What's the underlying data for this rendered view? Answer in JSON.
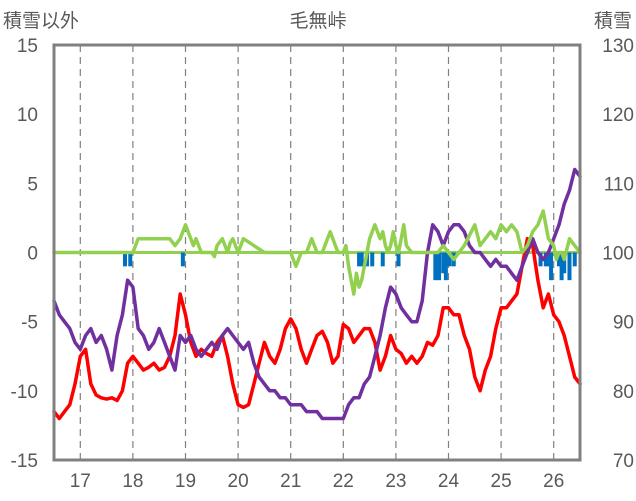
{
  "chart_data": {
    "type": "line",
    "title": "毛無峠",
    "ylabel_left": "積雪以外",
    "ylabel_right": "積雪",
    "xlim": [
      16.5,
      26.5
    ],
    "ylim_left": [
      -15,
      15
    ],
    "ylim_right": [
      70,
      130
    ],
    "x_ticks": [
      "17",
      "18",
      "19",
      "20",
      "21",
      "22",
      "23",
      "24",
      "25",
      "26"
    ],
    "x_tick_values": [
      17,
      18,
      19,
      20,
      21,
      22,
      23,
      24,
      25,
      26
    ],
    "y_ticks_left": [
      "15",
      "10",
      "5",
      "0",
      "-5",
      "-10",
      "-15"
    ],
    "y_tick_values_left": [
      15,
      10,
      5,
      0,
      -5,
      -10,
      -15
    ],
    "y_ticks_right": [
      "130",
      "120",
      "110",
      "100",
      "90",
      "80",
      "70"
    ],
    "y_tick_values_right": [
      130,
      120,
      110,
      100,
      90,
      80,
      70
    ],
    "grid": {
      "x": "dashed",
      "y": "none"
    },
    "colors": {
      "red": "#ff0000",
      "purple": "#7030a0",
      "green": "#92d050",
      "blue": "#0070c0",
      "axis": "#808080",
      "text": "#595959"
    },
    "series": [
      {
        "axis": "left",
        "kind": "line",
        "color": "#ff0000",
        "x": [
          16.5,
          16.6,
          16.7,
          16.8,
          16.9,
          17.0,
          17.1,
          17.2,
          17.3,
          17.4,
          17.5,
          17.6,
          17.7,
          17.8,
          17.9,
          18.0,
          18.1,
          18.2,
          18.3,
          18.4,
          18.5,
          18.6,
          18.7,
          18.8,
          18.9,
          19.0,
          19.1,
          19.2,
          19.3,
          19.4,
          19.5,
          19.6,
          19.7,
          19.8,
          19.9,
          20.0,
          20.1,
          20.2,
          20.3,
          20.4,
          20.5,
          20.6,
          20.7,
          20.8,
          20.9,
          21.0,
          21.1,
          21.2,
          21.3,
          21.4,
          21.5,
          21.6,
          21.7,
          21.8,
          21.9,
          22.0,
          22.1,
          22.2,
          22.3,
          22.4,
          22.5,
          22.6,
          22.7,
          22.8,
          22.9,
          23.0,
          23.1,
          23.2,
          23.3,
          23.4,
          23.5,
          23.6,
          23.7,
          23.8,
          23.9,
          24.0,
          24.1,
          24.2,
          24.3,
          24.4,
          24.5,
          24.6,
          24.7,
          24.8,
          24.9,
          25.0,
          25.1,
          25.2,
          25.3,
          25.4,
          25.5,
          25.6,
          25.7,
          25.8,
          25.9,
          26.0,
          26.1,
          26.2,
          26.3,
          26.4,
          26.5
        ],
        "y": [
          -11.5,
          -12.0,
          -11.5,
          -11.0,
          -9.5,
          -7.5,
          -7.0,
          -9.5,
          -10.3,
          -10.5,
          -10.6,
          -10.5,
          -10.7,
          -10.0,
          -8.0,
          -7.5,
          -8.0,
          -8.5,
          -8.3,
          -8.0,
          -8.5,
          -8.3,
          -7.5,
          -6.0,
          -3.0,
          -4.5,
          -6.5,
          -7.5,
          -7.0,
          -7.3,
          -7.5,
          -6.5,
          -6.0,
          -7.5,
          -9.5,
          -11.0,
          -11.2,
          -11.0,
          -9.5,
          -8.0,
          -6.5,
          -7.5,
          -8.0,
          -7.0,
          -5.5,
          -4.8,
          -5.5,
          -7.0,
          -8.0,
          -7.0,
          -6.0,
          -5.7,
          -6.5,
          -8.0,
          -7.5,
          -5.2,
          -5.5,
          -6.5,
          -6.0,
          -5.5,
          -5.5,
          -6.5,
          -8.5,
          -7.5,
          -6.0,
          -7.0,
          -7.3,
          -8.0,
          -7.5,
          -8.0,
          -7.5,
          -6.5,
          -6.7,
          -6.0,
          -4.0,
          -4.0,
          -4.5,
          -4.5,
          -6.0,
          -7.0,
          -9.0,
          -10.0,
          -8.5,
          -7.5,
          -5.5,
          -4.0,
          -4.0,
          -3.5,
          -3.0,
          -1.0,
          1.0,
          0.5,
          -2.0,
          -4.0,
          -3.0,
          -4.5,
          -5.0,
          -6.0,
          -7.5,
          -9.0,
          -9.5
        ]
      },
      {
        "axis": "right",
        "kind": "line",
        "color": "#7030a0",
        "x": [
          16.5,
          16.6,
          16.7,
          16.8,
          16.9,
          17.0,
          17.1,
          17.2,
          17.3,
          17.4,
          17.5,
          17.6,
          17.7,
          17.8,
          17.9,
          18.0,
          18.1,
          18.2,
          18.3,
          18.4,
          18.5,
          18.6,
          18.7,
          18.8,
          18.9,
          19.0,
          19.1,
          19.2,
          19.3,
          19.4,
          19.5,
          19.6,
          19.7,
          19.8,
          19.9,
          20.0,
          20.1,
          20.2,
          20.3,
          20.4,
          20.5,
          20.6,
          20.7,
          20.8,
          20.9,
          21.0,
          21.1,
          21.2,
          21.3,
          21.4,
          21.5,
          21.6,
          21.7,
          21.8,
          21.9,
          22.0,
          22.1,
          22.2,
          22.3,
          22.4,
          22.5,
          22.6,
          22.7,
          22.8,
          22.9,
          23.0,
          23.1,
          23.2,
          23.3,
          23.4,
          23.5,
          23.6,
          23.7,
          23.8,
          23.9,
          24.0,
          24.1,
          24.2,
          24.3,
          24.4,
          24.5,
          24.6,
          24.7,
          24.8,
          24.9,
          25.0,
          25.1,
          25.2,
          25.3,
          25.4,
          25.5,
          25.6,
          25.7,
          25.8,
          25.9,
          26.0,
          26.1,
          26.2,
          26.3,
          26.4,
          26.5
        ],
        "y": [
          93,
          91,
          90,
          89,
          87,
          86,
          88,
          89,
          87,
          88,
          86,
          83,
          88,
          91,
          96,
          95,
          89,
          88,
          86,
          87,
          89,
          87,
          85,
          83,
          88,
          87,
          88,
          86,
          85,
          86,
          87,
          86,
          88,
          89,
          88,
          87,
          86,
          87,
          84,
          82,
          81,
          80,
          80,
          79,
          79,
          78,
          78,
          78,
          77,
          77,
          77,
          76,
          76,
          76,
          76,
          76,
          78,
          79,
          79,
          81,
          82,
          85,
          88,
          92,
          95,
          94,
          92,
          91,
          90,
          90,
          93,
          100,
          104,
          103,
          101,
          103,
          104,
          104,
          103,
          101,
          100,
          100,
          99,
          98,
          99,
          98,
          98,
          97,
          96,
          98,
          100,
          102,
          100,
          99,
          100,
          102,
          104,
          107,
          109,
          112,
          111
        ]
      },
      {
        "axis": "left",
        "kind": "line",
        "color": "#92d050",
        "x": [
          16.5,
          17.0,
          17.5,
          18.0,
          18.05,
          18.1,
          18.2,
          18.3,
          18.5,
          18.6,
          18.7,
          18.8,
          18.9,
          19.0,
          19.05,
          19.1,
          19.15,
          19.2,
          19.3,
          19.4,
          19.5,
          19.55,
          19.6,
          19.7,
          19.75,
          19.8,
          19.85,
          19.9,
          19.95,
          20.0,
          20.05,
          20.1,
          20.5,
          21.0,
          21.05,
          21.1,
          21.15,
          21.2,
          21.3,
          21.35,
          21.4,
          21.5,
          21.6,
          21.65,
          21.7,
          21.75,
          21.8,
          21.9,
          22.0,
          22.05,
          22.1,
          22.15,
          22.2,
          22.25,
          22.3,
          22.35,
          22.4,
          22.45,
          22.5,
          22.6,
          22.65,
          22.7,
          22.75,
          22.8,
          22.85,
          22.9,
          22.95,
          23.0,
          23.05,
          23.1,
          23.15,
          23.2,
          23.3,
          23.5,
          23.6,
          23.8,
          23.9,
          24.0,
          24.1,
          24.2,
          24.3,
          24.5,
          24.6,
          24.8,
          24.9,
          25.0,
          25.1,
          25.2,
          25.3,
          25.4,
          25.5,
          25.6,
          25.7,
          25.8,
          25.9,
          26.0,
          26.05,
          26.1,
          26.15,
          26.2,
          26.3,
          26.5
        ],
        "y": [
          0,
          0,
          0,
          0,
          0.5,
          1.0,
          1.0,
          1.0,
          1.0,
          1.0,
          1.0,
          0.5,
          1.0,
          2.0,
          1.5,
          1.0,
          0.5,
          1.0,
          0,
          0,
          0,
          -0.3,
          0.5,
          1.0,
          0.5,
          0,
          0.7,
          1.0,
          0.5,
          0,
          0.5,
          1.0,
          0,
          0,
          -0.5,
          -1.0,
          -0.5,
          0,
          0,
          0.5,
          1.0,
          0,
          0,
          0.5,
          1.0,
          1.5,
          1.0,
          0,
          0,
          0.5,
          -1.0,
          -2.0,
          -3.0,
          -1.5,
          -2.5,
          -2.0,
          -1.0,
          0,
          1.0,
          2.0,
          1.5,
          1.0,
          1.5,
          0.5,
          0,
          0.5,
          1.5,
          0.5,
          0,
          1.0,
          2.0,
          0.5,
          0,
          0,
          0,
          0,
          0.5,
          0,
          -0.5,
          0,
          0.5,
          2.0,
          0.5,
          1.5,
          1.0,
          2.0,
          1.5,
          2.0,
          1.5,
          0,
          0.5,
          1.5,
          2.0,
          3.0,
          1.0,
          0.5,
          -0.5,
          0,
          0,
          -0.5,
          1.0,
          0
        ]
      },
      {
        "axis": "left",
        "kind": "bar",
        "color": "#0070c0",
        "x": [
          17.85,
          17.95,
          18.95,
          22.3,
          22.35,
          22.45,
          22.55,
          22.75,
          23.05,
          23.75,
          23.82,
          23.9,
          23.95,
          24.02,
          24.1,
          25.75,
          25.85,
          25.9,
          25.95,
          26.1,
          26.15,
          26.2,
          26.3,
          26.4
        ],
        "y": [
          -1.0,
          -1.0,
          -1.0,
          -1.0,
          -1.0,
          -1.0,
          -1.0,
          -1.0,
          -1.0,
          -2.0,
          -2.0,
          -1.5,
          -2.0,
          -1.0,
          -1.0,
          -1.0,
          -1.0,
          -1.0,
          -2.0,
          -1.0,
          -2.0,
          -1.5,
          -2.0,
          -1.0
        ]
      }
    ]
  }
}
